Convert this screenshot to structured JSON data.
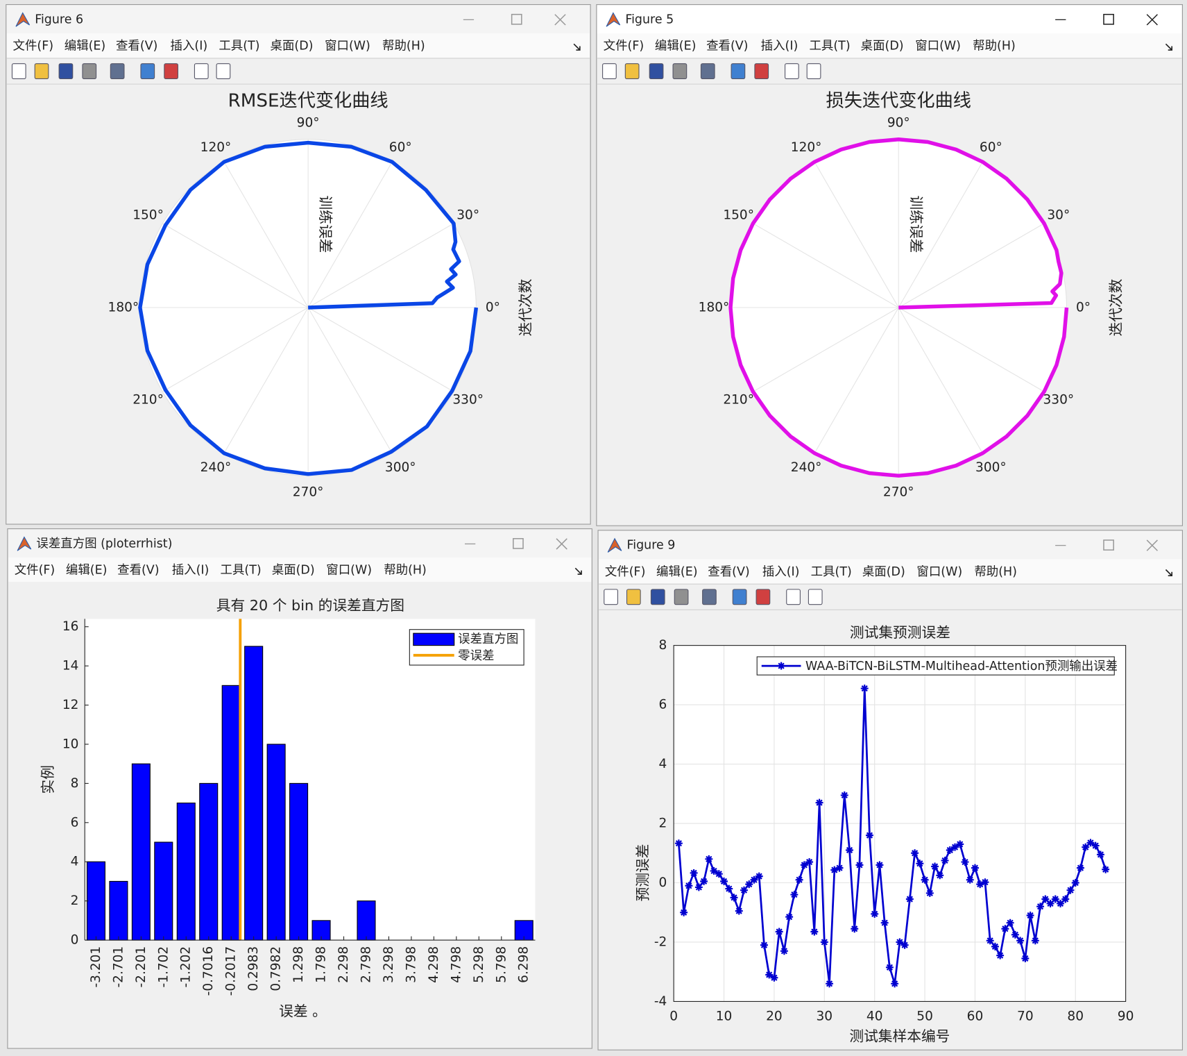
{
  "windows": [
    "Figure 6",
    "Figure 5",
    "误差直方图 (ploterrhist)",
    "Figure 9"
  ],
  "menu": [
    "文件(F)",
    "编辑(E)",
    "查看(V)",
    "插入(I)",
    "工具(T)",
    "桌面(D)",
    "窗口(W)",
    "帮助(H)"
  ],
  "chart_data": [
    {
      "type": "polar",
      "title": "RMSE迭代变化曲线",
      "rlabel": "训练误差",
      "thetalabel": "迭代次数",
      "color": "#0a46e6",
      "grid": true,
      "rlim": [
        0,
        1
      ],
      "thetaticks": [
        {
          "value": 0,
          "label": "0°"
        },
        {
          "value": 30,
          "label": "30°"
        },
        {
          "value": 60,
          "label": "60°"
        },
        {
          "value": 90,
          "label": "90°"
        },
        {
          "value": 120,
          "label": "120°"
        },
        {
          "value": 150,
          "label": "150°"
        },
        {
          "value": 180,
          "label": "180°"
        },
        {
          "value": 210,
          "label": "210°"
        },
        {
          "value": 240,
          "label": "240°"
        },
        {
          "value": 270,
          "label": "270°"
        },
        {
          "value": 300,
          "label": "300°"
        },
        {
          "value": 330,
          "label": "330°"
        }
      ],
      "theta": [
        0,
        2,
        4.4,
        7.8,
        10.6,
        12.6,
        15,
        17,
        21.8,
        24,
        30,
        45,
        60,
        75,
        90,
        105,
        120,
        135,
        150,
        165,
        180,
        195,
        210,
        225,
        240,
        255,
        270,
        285,
        300,
        315,
        330,
        345,
        360
      ],
      "r": [
        0,
        0.74,
        0.77,
        0.87,
        0.84,
        0.9,
        0.88,
        0.94,
        0.93,
        0.96,
        1.0,
        0.99,
        1.0,
        0.99,
        0.98,
        0.99,
        1.0,
        0.99,
        0.98,
        0.99,
        1.0,
        0.99,
        0.98,
        0.99,
        1.0,
        0.99,
        0.99,
        1.0,
        0.99,
        1.0,
        0.99,
        1.0,
        1.0
      ]
    },
    {
      "type": "polar",
      "title": "损失迭代变化曲线",
      "rlabel": "训练误差",
      "thetalabel": "迭代次数",
      "color": "#e010e8",
      "grid": true,
      "rlim": [
        0,
        1
      ],
      "thetaticks": [
        {
          "value": 0,
          "label": "0°"
        },
        {
          "value": 30,
          "label": "30°"
        },
        {
          "value": 60,
          "label": "60°"
        },
        {
          "value": 90,
          "label": "90°"
        },
        {
          "value": 120,
          "label": "120°"
        },
        {
          "value": 150,
          "label": "150°"
        },
        {
          "value": 180,
          "label": "180°"
        },
        {
          "value": 210,
          "label": "210°"
        },
        {
          "value": 240,
          "label": "240°"
        },
        {
          "value": 270,
          "label": "270°"
        },
        {
          "value": 300,
          "label": "300°"
        },
        {
          "value": 330,
          "label": "330°"
        }
      ],
      "theta": [
        0,
        1.7,
        4.4,
        6,
        8.3,
        12,
        16,
        20,
        30,
        40,
        50,
        60,
        70,
        80,
        90,
        100,
        110,
        120,
        130,
        140,
        150,
        160,
        170,
        180,
        190,
        200,
        210,
        220,
        230,
        240,
        250,
        260,
        270,
        280,
        290,
        300,
        310,
        320,
        330,
        340,
        350,
        360
      ],
      "r": [
        0,
        0.91,
        0.94,
        0.92,
        0.97,
        0.99,
        0.99,
        1.0,
        1.0,
        1.0,
        1.0,
        1.0,
        1.0,
        1.0,
        1.0,
        1.0,
        1.0,
        1.0,
        1.0,
        1.0,
        1.0,
        1.0,
        1.0,
        1.0,
        1.0,
        1.0,
        1.0,
        1.0,
        1.0,
        1.0,
        1.0,
        1.0,
        1.0,
        1.0,
        1.0,
        1.0,
        1.0,
        1.0,
        1.0,
        1.0,
        1.0,
        1.0
      ]
    },
    {
      "type": "histogram",
      "title": "具有 20 个 bin 的误差直方图",
      "xlabel": "误差 。",
      "ylabel": "实例",
      "legend": "northeast",
      "bins": [
        -3.451,
        -2.951,
        -2.451,
        -1.952,
        -1.452,
        -0.9516,
        -0.4517,
        0.0483,
        0.5483,
        1.048,
        1.548,
        2.048,
        2.548,
        3.048,
        3.548,
        4.048,
        4.548,
        5.048,
        5.548,
        6.048,
        6.548
      ],
      "series": [
        {
          "name": "误差直方图",
          "color": "#0000ff",
          "values": [
            4,
            3,
            9,
            5,
            7,
            8,
            13,
            15,
            10,
            8,
            1,
            0,
            2,
            0,
            0,
            0,
            0,
            0,
            0,
            1
          ]
        }
      ],
      "vline": {
        "name": "零误差",
        "x": 0,
        "color": "#f5a000"
      },
      "xlim": [
        -3.451,
        6.548
      ],
      "xticks": [
        -3.201,
        -2.701,
        -2.201,
        -1.702,
        -1.202,
        -0.7016,
        -0.2017,
        0.2983,
        0.7982,
        1.298,
        1.798,
        2.298,
        2.798,
        3.298,
        3.798,
        4.298,
        4.798,
        5.298,
        5.798,
        6.298
      ],
      "ylim": [
        0,
        16.4
      ],
      "yticks": [
        0,
        2,
        4,
        6,
        8,
        10,
        12,
        14,
        16
      ]
    },
    {
      "type": "line",
      "title": "测试集预测误差",
      "xlabel": "测试集样本编号",
      "ylabel": "预测误差",
      "legend": "northeast",
      "grid": true,
      "x": [
        1,
        2,
        3,
        4,
        5,
        6,
        7,
        8,
        9,
        10,
        11,
        12,
        13,
        14,
        15,
        16,
        17,
        18,
        19,
        20,
        21,
        22,
        23,
        24,
        25,
        26,
        27,
        28,
        29,
        30,
        31,
        32,
        33,
        34,
        35,
        36,
        37,
        38,
        39,
        40,
        41,
        42,
        43,
        44,
        45,
        46,
        47,
        48,
        49,
        50,
        51,
        52,
        53,
        54,
        55,
        56,
        57,
        58,
        59,
        60,
        61,
        62,
        63,
        64,
        65,
        66,
        67,
        68,
        69,
        70,
        71,
        72,
        73,
        74,
        75,
        76,
        77,
        78,
        79,
        80,
        81,
        82,
        83,
        84,
        85,
        86
      ],
      "series": [
        {
          "name": "WAA-BiTCN-BiLSTM-Multihead-Attention预测输出误差",
          "color": "#0000d0",
          "values": [
            1.33,
            -1.0,
            -0.1,
            0.33,
            -0.15,
            0.05,
            0.8,
            0.4,
            0.3,
            0.05,
            -0.2,
            -0.5,
            -0.95,
            -0.25,
            -0.05,
            0.1,
            0.22,
            -2.1,
            -3.1,
            -3.2,
            -1.65,
            -2.3,
            -1.15,
            -0.4,
            0.1,
            0.6,
            0.7,
            -1.65,
            2.7,
            -2.0,
            -3.4,
            0.43,
            0.5,
            2.95,
            1.1,
            -1.55,
            0.6,
            6.55,
            1.6,
            -1.05,
            0.6,
            -1.35,
            -2.85,
            -3.4,
            -2.0,
            -2.1,
            -0.55,
            1.0,
            0.65,
            0.1,
            -0.35,
            0.55,
            0.25,
            0.75,
            1.1,
            1.2,
            1.3,
            0.7,
            0.1,
            0.5,
            -0.05,
            0.02,
            -1.95,
            -2.15,
            -2.45,
            -1.55,
            -1.35,
            -1.75,
            -1.95,
            -2.55,
            -1.1,
            -1.95,
            -0.8,
            -0.55,
            -0.7,
            -0.55,
            -0.7,
            -0.55,
            -0.25,
            0.0,
            0.5,
            1.2,
            1.35,
            1.25,
            0.95,
            0.45
          ]
        }
      ],
      "xlim": [
        0,
        90
      ],
      "xticks": [
        0,
        10,
        20,
        30,
        40,
        50,
        60,
        70,
        80,
        90
      ],
      "ylim": [
        -4,
        8
      ],
      "yticks": [
        -4,
        -2,
        0,
        2,
        4,
        6,
        8
      ]
    }
  ]
}
